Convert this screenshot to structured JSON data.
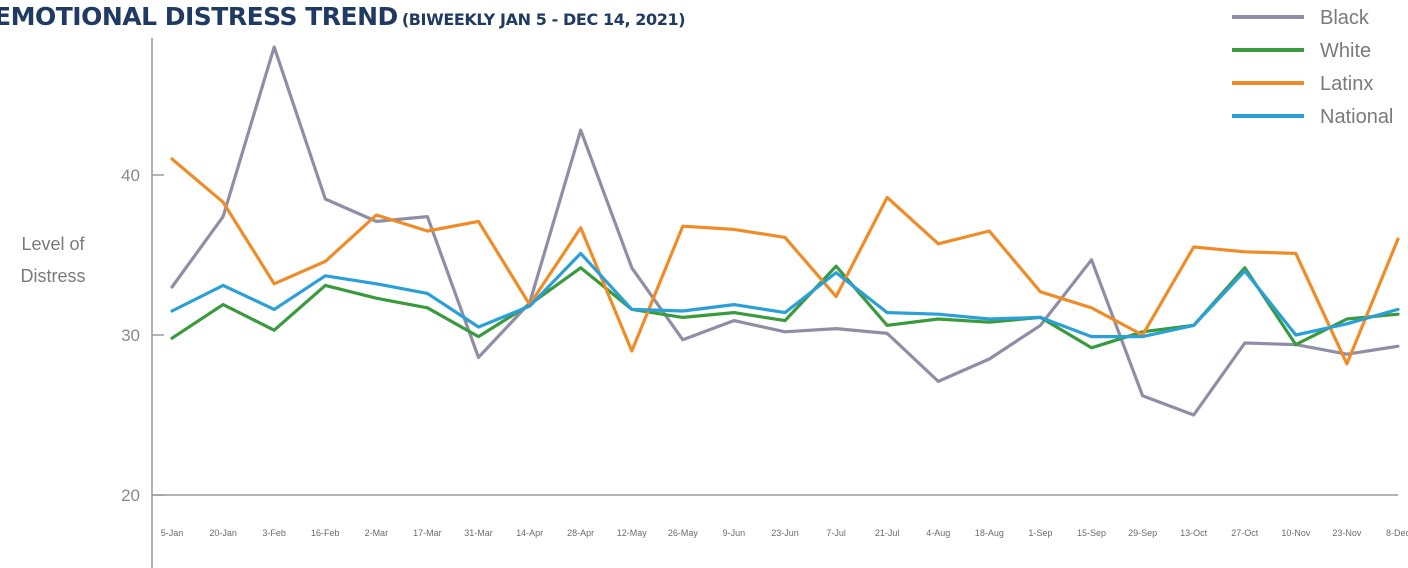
{
  "chart_data": {
    "type": "line",
    "title": "EMOTIONAL DISTRESS TREND",
    "subtitle": "(BIWEEKLY JAN 5 - DEC 14, 2021)",
    "xlabel": "",
    "ylabel": [
      "Level of",
      "Distress"
    ],
    "ylim": [
      17,
      50
    ],
    "yticks": [
      20,
      30,
      40
    ],
    "grid": false,
    "legend_position": "top-right",
    "categories": [
      "5-Jan",
      "20-Jan",
      "3-Feb",
      "16-Feb",
      "2-Mar",
      "17-Mar",
      "31-Mar",
      "14-Apr",
      "28-Apr",
      "12-May",
      "26-May",
      "9-Jun",
      "23-Jun",
      "7-Jul",
      "21-Jul",
      "4-Aug",
      "18-Aug",
      "1-Sep",
      "15-Sep",
      "29-Sep",
      "13-Oct",
      "27-Oct",
      "10-Nov",
      "23-Nov",
      "8-Dec"
    ],
    "series": [
      {
        "name": "Black",
        "color": "#8e8fa6",
        "values": [
          33.0,
          37.4,
          48.0,
          38.5,
          37.1,
          37.4,
          28.6,
          32.0,
          42.8,
          34.2,
          29.7,
          30.9,
          30.2,
          30.4,
          30.1,
          27.1,
          28.5,
          30.6,
          34.7,
          26.2,
          25.0,
          29.5,
          29.4,
          28.8,
          29.3
        ]
      },
      {
        "name": "White",
        "color": "#3a9a3e",
        "values": [
          29.8,
          31.9,
          30.3,
          33.1,
          32.3,
          31.7,
          29.9,
          31.9,
          34.2,
          31.6,
          31.1,
          31.4,
          30.9,
          34.3,
          30.6,
          31.0,
          30.8,
          31.1,
          29.2,
          30.2,
          30.6,
          34.2,
          29.4,
          31.0,
          31.3
        ]
      },
      {
        "name": "Latinx",
        "color": "#f08c28",
        "values": [
          41.0,
          38.3,
          33.2,
          34.6,
          37.5,
          36.5,
          37.1,
          31.9,
          36.7,
          29.0,
          36.8,
          36.6,
          36.1,
          32.4,
          38.6,
          35.7,
          36.5,
          32.7,
          31.7,
          30.0,
          35.5,
          35.2,
          35.1,
          28.2,
          36.0
        ]
      },
      {
        "name": "National",
        "color": "#2a9fd8",
        "values": [
          31.5,
          33.1,
          31.6,
          33.7,
          33.2,
          32.6,
          30.5,
          31.8,
          35.1,
          31.6,
          31.5,
          31.9,
          31.4,
          33.9,
          31.4,
          31.3,
          31.0,
          31.1,
          29.9,
          29.9,
          30.6,
          34.0,
          30.0,
          30.7,
          31.6
        ]
      }
    ]
  }
}
